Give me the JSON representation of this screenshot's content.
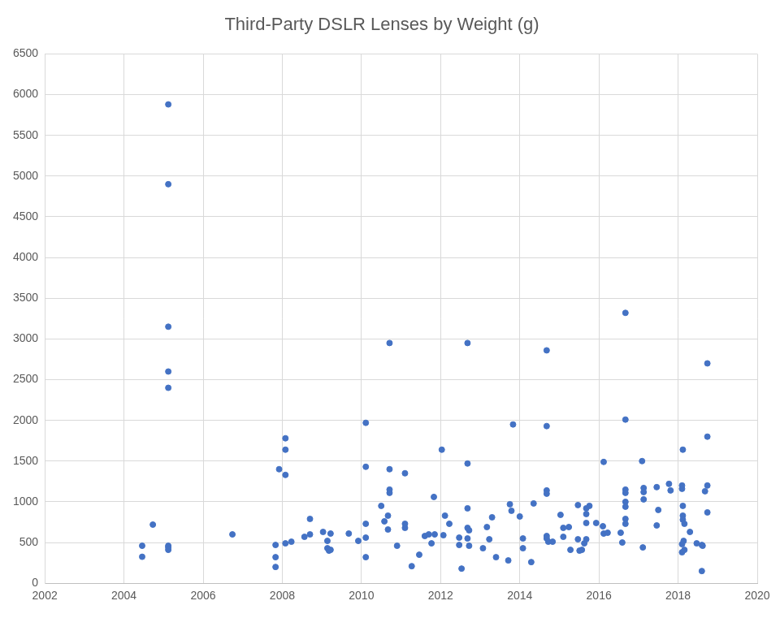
{
  "chart_data": {
    "type": "scatter",
    "title": "Third-Party DSLR Lenses by Weight (g)",
    "x": [
      2004.46,
      2004.46,
      2004.73,
      2005.12,
      2005.12,
      2005.12,
      2005.12,
      2005.12,
      2005.12,
      2005.12,
      2005.12,
      2006.74,
      2007.83,
      2007.83,
      2007.83,
      2007.92,
      2008.08,
      2008.08,
      2008.08,
      2008.08,
      2008.23,
      2008.56,
      2008.7,
      2008.7,
      2009.03,
      2009.14,
      2009.14,
      2009.18,
      2009.22,
      2009.22,
      2009.68,
      2009.92,
      2010.11,
      2010.11,
      2010.11,
      2010.11,
      2010.11,
      2010.5,
      2010.58,
      2010.67,
      2010.71,
      2010.71,
      2010.71,
      2010.71,
      2010.67,
      2010.9,
      2011.1,
      2011.1,
      2011.1,
      2011.27,
      2011.46,
      2011.6,
      2011.7,
      2011.77,
      2011.85,
      2011.83,
      2012.03,
      2012.07,
      2012.11,
      2012.22,
      2012.47,
      2012.47,
      2012.53,
      2012.68,
      2012.68,
      2012.68,
      2012.68,
      2012.72,
      2012.68,
      2012.72,
      2013.07,
      2013.17,
      2013.23,
      2013.3,
      2013.4,
      2013.71,
      2013.75,
      2013.79,
      2013.83,
      2014.0,
      2014.08,
      2014.08,
      2014.29,
      2014.35,
      2014.68,
      2014.68,
      2014.68,
      2014.68,
      2014.68,
      2014.68,
      2014.72,
      2014.83,
      2015.03,
      2015.1,
      2015.1,
      2015.24,
      2015.28,
      2015.47,
      2015.47,
      2015.51,
      2015.57,
      2015.63,
      2015.68,
      2015.68,
      2015.68,
      2015.68,
      2015.76,
      2015.93,
      2016.1,
      2016.12,
      2016.12,
      2016.22,
      2016.55,
      2016.59,
      2016.67,
      2016.67,
      2016.67,
      2016.67,
      2016.67,
      2016.67,
      2016.67,
      2016.67,
      2017.09,
      2017.13,
      2017.13,
      2017.13,
      2017.11,
      2017.46,
      2017.46,
      2017.5,
      2017.77,
      2017.81,
      2018.1,
      2018.1,
      2018.1,
      2018.12,
      2018.12,
      2018.12,
      2018.12,
      2018.16,
      2018.1,
      2018.16,
      2018.14,
      2018.3,
      2018.47,
      2018.6,
      2018.62,
      2018.6,
      2018.68,
      2018.74,
      2018.74,
      2018.74,
      2018.74
    ],
    "values": [
      460,
      325,
      720,
      5880,
      4900,
      3150,
      2600,
      2400,
      460,
      440,
      410,
      600,
      470,
      320,
      200,
      1400,
      1780,
      1640,
      1330,
      490,
      510,
      570,
      600,
      790,
      630,
      520,
      430,
      400,
      410,
      610,
      610,
      520,
      1970,
      1430,
      560,
      730,
      320,
      950,
      760,
      830,
      2950,
      1400,
      1150,
      1110,
      660,
      460,
      730,
      680,
      1350,
      210,
      350,
      580,
      600,
      490,
      600,
      1060,
      1640,
      590,
      830,
      730,
      560,
      470,
      180,
      2950,
      1470,
      920,
      680,
      650,
      550,
      460,
      430,
      690,
      540,
      810,
      320,
      280,
      970,
      890,
      1950,
      820,
      550,
      430,
      260,
      980,
      2860,
      1930,
      1140,
      1100,
      580,
      550,
      510,
      510,
      840,
      680,
      570,
      690,
      410,
      960,
      540,
      400,
      410,
      490,
      920,
      850,
      740,
      540,
      950,
      740,
      700,
      1490,
      610,
      620,
      620,
      500,
      3320,
      2010,
      1150,
      1110,
      1000,
      940,
      790,
      730,
      1500,
      1170,
      1120,
      1030,
      440,
      1180,
      710,
      900,
      1220,
      1140,
      480,
      1160,
      1200,
      1640,
      950,
      830,
      780,
      730,
      380,
      410,
      520,
      630,
      490,
      470,
      460,
      150,
      1130,
      2700,
      1800,
      1200,
      870
    ],
    "color": "#4472c4",
    "xlim": [
      2002,
      2020
    ],
    "xticks": [
      2002,
      2004,
      2006,
      2008,
      2010,
      2012,
      2014,
      2016,
      2018,
      2020
    ],
    "ylim": [
      0,
      6500
    ],
    "yticks": [
      0,
      500,
      1000,
      1500,
      2000,
      2500,
      3000,
      3500,
      4000,
      4500,
      5000,
      5500,
      6000,
      6500
    ],
    "grid": true
  }
}
